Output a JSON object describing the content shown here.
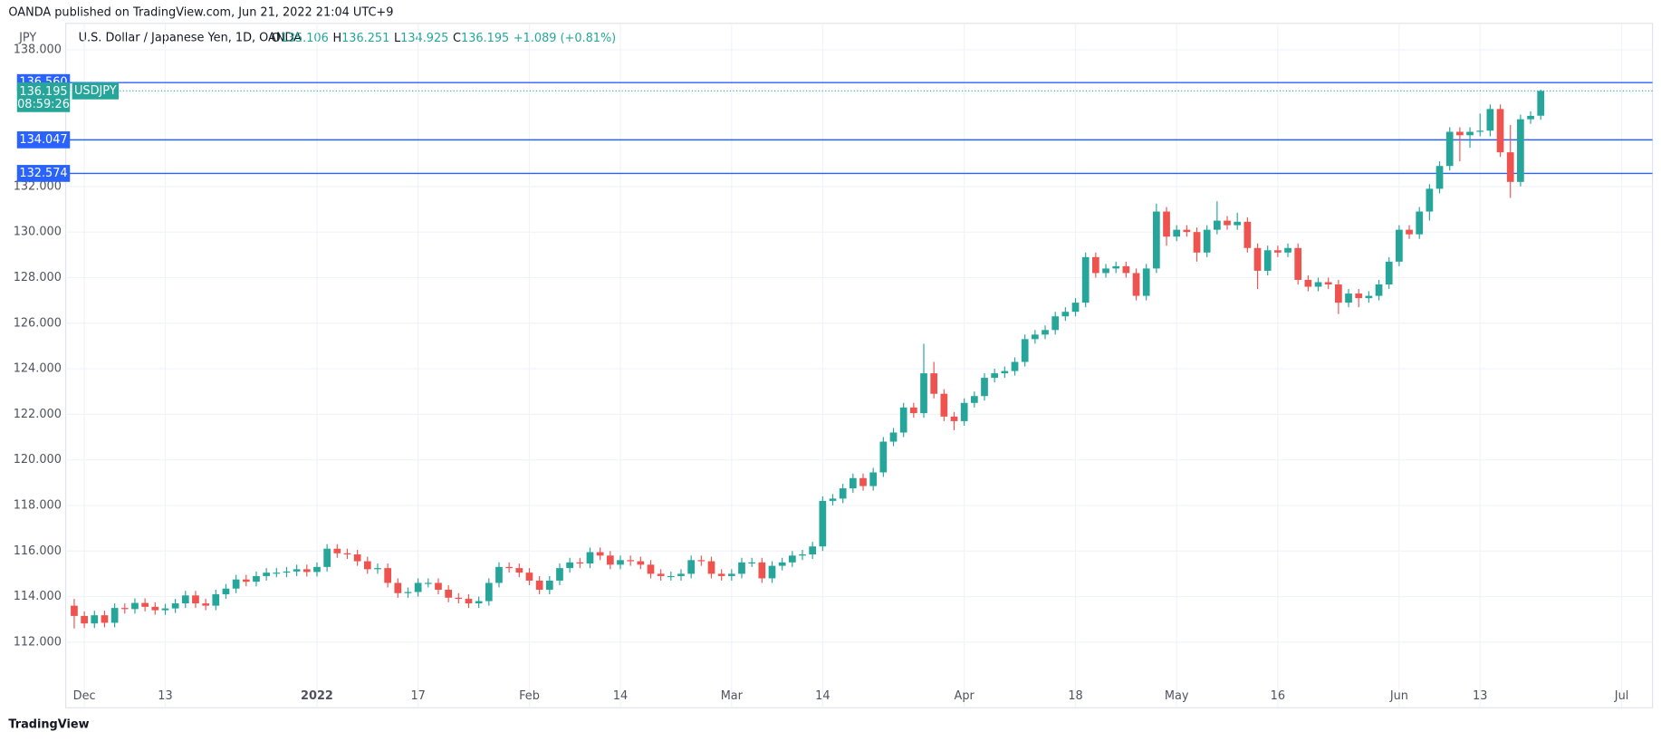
{
  "chart_data": {
    "type": "candlestick",
    "published": "OANDA published on TradingView.com, Jun 21, 2022 21:04 UTC+9",
    "currency": "JPY",
    "title": "U.S. Dollar / Japanese Yen, 1D, OANDA",
    "ohlc_prefix": [
      "O",
      "H",
      "L",
      "C"
    ],
    "change": "+1.089 (+0.81%)",
    "footer": "TradingView",
    "up_color": "#26a69a",
    "down_color": "#ef5350",
    "open": [
      113.6,
      113.15,
      112.82,
      113.18,
      112.85,
      113.5,
      113.45,
      113.72,
      113.55,
      113.4,
      113.48,
      113.7,
      114.05,
      113.7,
      113.6,
      114.1,
      114.35,
      114.75,
      114.65,
      114.9,
      115.05,
      115.05,
      115.1,
      115.2,
      115.08,
      115.3,
      116.1,
      115.9,
      115.85,
      115.55,
      115.2,
      115.25,
      114.6,
      114.15,
      114.2,
      114.6,
      114.6,
      114.3,
      113.95,
      113.9,
      113.7,
      113.8,
      114.6,
      115.3,
      115.25,
      115.05,
      114.7,
      114.3,
      114.7,
      115.25,
      115.5,
      115.45,
      115.95,
      115.8,
      115.4,
      115.6,
      115.55,
      115.4,
      115.0,
      114.9,
      114.9,
      115.0,
      115.6,
      115.55,
      115.0,
      114.9,
      115.0,
      115.5,
      115.5,
      114.8,
      115.35,
      115.5,
      115.8,
      115.85,
      116.2,
      118.2,
      118.3,
      118.75,
      119.2,
      118.85,
      119.45,
      120.8,
      121.2,
      122.3,
      122.05,
      123.8,
      122.9,
      121.9,
      121.7,
      122.5,
      122.8,
      123.6,
      123.8,
      123.9,
      124.3,
      125.3,
      125.5,
      125.7,
      126.3,
      126.5,
      126.9,
      128.9,
      128.2,
      128.4,
      128.5,
      128.2,
      127.2,
      128.4,
      130.9,
      129.8,
      130.1,
      130.0,
      129.1,
      130.1,
      130.5,
      130.3,
      130.45,
      129.3,
      128.3,
      129.2,
      129.1,
      129.3,
      127.9,
      127.6,
      127.8,
      127.7,
      126.9,
      127.3,
      127.1,
      127.2,
      127.7,
      128.7,
      130.1,
      129.9,
      130.9,
      131.9,
      132.9,
      134.4,
      134.25,
      134.4,
      134.45,
      135.4,
      133.5,
      132.2,
      134.95,
      135.106
    ],
    "high": [
      113.9,
      113.35,
      113.38,
      113.38,
      113.7,
      113.7,
      113.92,
      113.92,
      113.75,
      113.68,
      113.9,
      114.25,
      114.25,
      113.9,
      114.3,
      114.55,
      114.95,
      114.95,
      115.1,
      115.25,
      115.25,
      115.3,
      115.4,
      115.4,
      115.5,
      116.3,
      116.3,
      116.1,
      116.05,
      115.75,
      115.45,
      115.45,
      114.8,
      114.4,
      114.8,
      114.8,
      114.8,
      114.5,
      114.15,
      114.1,
      114.0,
      114.8,
      115.5,
      115.5,
      115.45,
      115.25,
      114.9,
      114.9,
      115.45,
      115.7,
      115.7,
      116.15,
      116.15,
      116.0,
      115.8,
      115.8,
      115.75,
      115.6,
      115.2,
      115.1,
      115.2,
      115.8,
      115.8,
      115.75,
      115.2,
      115.2,
      115.7,
      115.7,
      115.7,
      115.55,
      115.7,
      116.0,
      116.05,
      116.4,
      118.4,
      118.5,
      118.95,
      119.4,
      119.4,
      119.65,
      121.0,
      121.4,
      122.5,
      122.5,
      125.1,
      124.3,
      123.1,
      122.1,
      122.7,
      123.0,
      123.8,
      124.0,
      124.1,
      124.5,
      125.5,
      125.7,
      125.9,
      126.5,
      126.7,
      127.1,
      129.1,
      129.1,
      128.6,
      128.7,
      128.7,
      128.4,
      128.6,
      131.25,
      131.1,
      130.3,
      130.3,
      130.2,
      130.3,
      131.35,
      130.7,
      130.85,
      130.65,
      129.5,
      129.4,
      129.4,
      129.5,
      129.5,
      128.1,
      128.0,
      128.0,
      127.9,
      127.5,
      127.5,
      127.4,
      127.9,
      128.9,
      130.3,
      130.3,
      131.1,
      132.1,
      133.1,
      134.6,
      134.6,
      134.6,
      135.2,
      135.6,
      135.6,
      134.7,
      135.15,
      135.3,
      136.251
    ],
    "low": [
      112.6,
      112.62,
      112.62,
      112.65,
      112.65,
      113.25,
      113.25,
      113.35,
      113.2,
      113.2,
      113.28,
      113.5,
      113.5,
      113.4,
      113.4,
      113.9,
      114.15,
      114.45,
      114.45,
      114.7,
      114.85,
      114.85,
      114.9,
      114.88,
      114.88,
      115.1,
      115.7,
      115.65,
      115.35,
      115.0,
      115.0,
      114.4,
      113.95,
      113.95,
      114.0,
      114.4,
      114.1,
      113.75,
      113.7,
      113.5,
      113.5,
      113.6,
      114.4,
      115.05,
      114.85,
      114.5,
      114.1,
      114.1,
      114.5,
      115.05,
      115.25,
      115.25,
      115.6,
      115.2,
      115.2,
      115.35,
      115.2,
      114.8,
      114.7,
      114.7,
      114.7,
      114.8,
      115.35,
      114.8,
      114.7,
      114.7,
      114.8,
      115.3,
      114.6,
      114.6,
      115.15,
      115.3,
      115.6,
      115.65,
      116.0,
      118.0,
      118.1,
      118.55,
      118.65,
      118.65,
      119.25,
      120.6,
      121.0,
      121.85,
      121.85,
      122.7,
      121.7,
      121.3,
      121.5,
      122.3,
      122.6,
      123.4,
      123.6,
      123.7,
      124.1,
      125.1,
      125.3,
      125.5,
      126.1,
      126.3,
      126.7,
      128.0,
      128.0,
      128.2,
      128.0,
      127.0,
      127.0,
      128.2,
      129.4,
      129.6,
      129.8,
      128.7,
      128.9,
      129.9,
      130.1,
      130.1,
      129.1,
      127.5,
      128.1,
      128.9,
      128.9,
      127.7,
      127.4,
      127.4,
      127.5,
      126.4,
      126.7,
      126.7,
      126.9,
      127.0,
      127.5,
      128.5,
      129.7,
      129.7,
      130.5,
      131.7,
      132.7,
      133.1,
      133.7,
      134.2,
      134.2,
      133.3,
      131.5,
      132.0,
      134.75,
      134.925
    ],
    "close": [
      113.15,
      112.82,
      113.18,
      112.85,
      113.5,
      113.45,
      113.72,
      113.55,
      113.4,
      113.48,
      113.7,
      114.05,
      113.7,
      113.6,
      114.1,
      114.35,
      114.75,
      114.65,
      114.9,
      115.05,
      115.05,
      115.1,
      115.2,
      115.08,
      115.3,
      116.1,
      115.9,
      115.85,
      115.55,
      115.2,
      115.25,
      114.6,
      114.15,
      114.2,
      114.6,
      114.6,
      114.3,
      113.95,
      113.9,
      113.7,
      113.8,
      114.6,
      115.3,
      115.25,
      115.05,
      114.7,
      114.3,
      114.7,
      115.25,
      115.5,
      115.45,
      115.95,
      115.8,
      115.4,
      115.6,
      115.55,
      115.4,
      115.0,
      114.9,
      114.9,
      115.0,
      115.6,
      115.55,
      115.0,
      114.9,
      115.0,
      115.5,
      115.5,
      114.8,
      115.35,
      115.5,
      115.8,
      115.85,
      116.2,
      118.2,
      118.3,
      118.75,
      119.2,
      118.85,
      119.45,
      120.8,
      121.2,
      122.3,
      122.05,
      123.8,
      122.9,
      121.9,
      121.7,
      122.5,
      122.8,
      123.6,
      123.8,
      123.9,
      124.3,
      125.3,
      125.5,
      125.7,
      126.3,
      126.5,
      126.9,
      128.9,
      128.2,
      128.4,
      128.5,
      128.2,
      127.2,
      128.4,
      130.9,
      129.8,
      130.1,
      130.0,
      129.1,
      130.1,
      130.5,
      130.3,
      130.45,
      129.3,
      128.3,
      129.2,
      129.1,
      129.3,
      127.9,
      127.6,
      127.8,
      127.7,
      126.9,
      127.3,
      127.1,
      127.2,
      127.7,
      128.7,
      130.1,
      129.9,
      130.9,
      131.9,
      132.9,
      134.4,
      134.25,
      134.4,
      134.45,
      135.4,
      133.5,
      132.2,
      134.95,
      135.1,
      136.195
    ],
    "last_price": {
      "value": 136.195,
      "label": "136.195",
      "countdown": "08:59:26",
      "symbol": "USDJPY",
      "color": "#26a69a"
    },
    "hlines": [
      {
        "value": 136.56,
        "label": "136.560"
      },
      {
        "value": 134.047,
        "label": "134.047"
      },
      {
        "value": 132.574,
        "label": "132.574"
      }
    ],
    "hline_color": "#2962ff",
    "xlim": [
      -0.84,
      155
    ],
    "xticks": [
      {
        "value": 1,
        "label": "Dec"
      },
      {
        "value": 9,
        "label": "13"
      },
      {
        "value": 24,
        "label": "2022"
      },
      {
        "value": 34,
        "label": "17"
      },
      {
        "value": 45,
        "label": "Feb"
      },
      {
        "value": 54,
        "label": "14"
      },
      {
        "value": 65,
        "label": "Mar"
      },
      {
        "value": 74,
        "label": "14"
      },
      {
        "value": 88,
        "label": "Apr"
      },
      {
        "value": 99,
        "label": "18"
      },
      {
        "value": 109,
        "label": "May"
      },
      {
        "value": 119,
        "label": "16"
      },
      {
        "value": 131,
        "label": "Jun"
      },
      {
        "value": 139,
        "label": "13"
      },
      {
        "value": 153,
        "label": "Jul"
      }
    ],
    "ylim": [
      110.19,
      138.79
    ],
    "yticks": [
      {
        "value": 112,
        "label": "112.000"
      },
      {
        "value": 114,
        "label": "114.000"
      },
      {
        "value": 116,
        "label": "116.000"
      },
      {
        "value": 118,
        "label": "118.000"
      },
      {
        "value": 120,
        "label": "120.000"
      },
      {
        "value": 122,
        "label": "122.000"
      },
      {
        "value": 124,
        "label": "124.000"
      },
      {
        "value": 126,
        "label": "126.000"
      },
      {
        "value": 128,
        "label": "128.000"
      },
      {
        "value": 130,
        "label": "130.000"
      },
      {
        "value": 132,
        "label": "132.000"
      },
      {
        "value": 138,
        "label": "138.000"
      }
    ],
    "grid": true
  }
}
